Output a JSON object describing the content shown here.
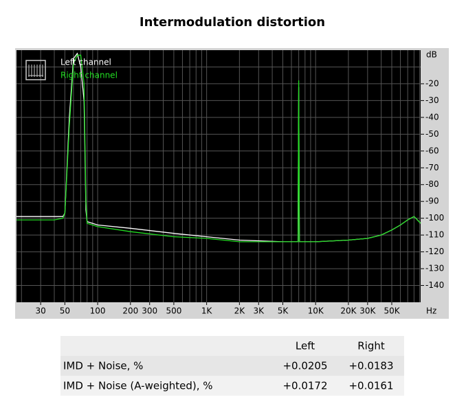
{
  "chart_data": {
    "type": "line",
    "title": "Intermodulation distortion",
    "x_scale": "log",
    "grid": true,
    "xlim": [
      18,
      92000
    ],
    "ylim": [
      -150,
      0
    ],
    "x_label": "Hz",
    "y_label": "dB",
    "xticks": [
      30,
      50,
      100,
      200,
      300,
      500,
      {
        "value": 1000,
        "label": "1K"
      },
      {
        "value": 2000,
        "label": "2K"
      },
      {
        "value": 3000,
        "label": "3K"
      },
      {
        "value": 5000,
        "label": "5K"
      },
      {
        "value": 10000,
        "label": "10K"
      },
      {
        "value": 20000,
        "label": "20K"
      },
      {
        "value": 30000,
        "label": "30K"
      },
      {
        "value": 50000,
        "label": "50K"
      }
    ],
    "xgrid": [
      20,
      30,
      40,
      50,
      60,
      70,
      80,
      90,
      100,
      200,
      300,
      400,
      500,
      600,
      700,
      800,
      900,
      1000,
      2000,
      3000,
      4000,
      5000,
      6000,
      7000,
      8000,
      9000,
      10000,
      20000,
      30000,
      40000,
      50000,
      60000,
      70000,
      80000,
      90000
    ],
    "yticks": [
      -20,
      -30,
      -40,
      -50,
      -60,
      -70,
      -80,
      -90,
      -100,
      -110,
      -120,
      -130,
      -140
    ],
    "ygrid": [
      -10,
      -20,
      -30,
      -40,
      -50,
      -60,
      -70,
      -80,
      -90,
      -100,
      -110,
      -120,
      -130,
      -140
    ],
    "x": [
      18,
      40,
      48,
      50,
      55,
      60,
      65,
      70,
      75,
      78,
      80,
      100,
      200,
      500,
      1000,
      2000,
      5000,
      6900,
      7000,
      7100,
      10000,
      20000,
      30000,
      40000,
      50000,
      60000,
      70000,
      80000,
      92000
    ],
    "series": [
      {
        "name": "Left channel",
        "color": "#ffffff",
        "values": [
          -99,
          -99,
          -99,
          -97,
          -40,
          -5,
          -2,
          -10,
          -30,
          -95,
          -102,
          -104,
          -106,
          -109,
          -111,
          -113,
          -114,
          -114,
          -22,
          -114,
          -114,
          -113,
          -112,
          -110,
          -107,
          -104,
          -101,
          -99,
          -103
        ]
      },
      {
        "name": "Right channel",
        "color": "#22dd22",
        "values": [
          -101,
          -101,
          -100,
          -97,
          -45,
          -8,
          -3,
          -3,
          -20,
          -90,
          -103,
          -105,
          -108,
          -111,
          -112,
          -114,
          -114,
          -114,
          -18,
          -114,
          -114,
          -113,
          -112,
          -110,
          -107,
          -104,
          -101,
          -99,
          -103
        ]
      }
    ]
  },
  "table": {
    "columns": [
      "Left",
      "Right"
    ],
    "rows": [
      {
        "label": "IMD + Noise, %",
        "values": [
          "+0.0205",
          "+0.0183"
        ]
      },
      {
        "label": "IMD + Noise (A-weighted), %",
        "values": [
          "+0.0172",
          "+0.0161"
        ]
      }
    ]
  }
}
